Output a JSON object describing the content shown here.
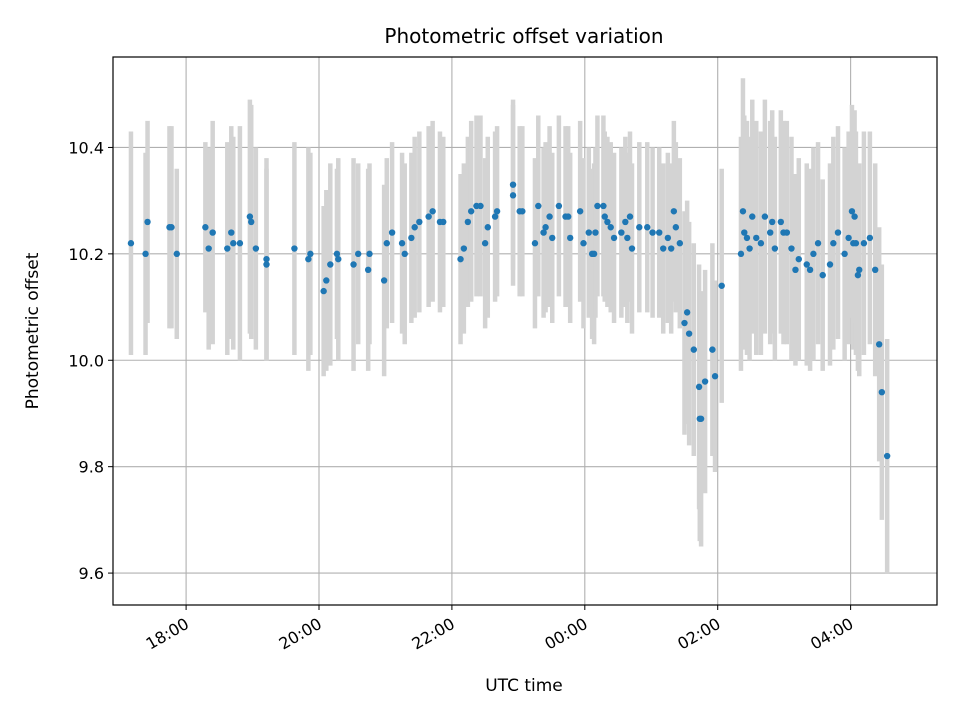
{
  "chart_data": {
    "type": "scatter",
    "title": "Photometric offset variation",
    "xlabel": "UTC time",
    "ylabel": "Photometric offset",
    "x_unit": "hours_utc",
    "xlim": [
      16.9,
      29.3
    ],
    "ylim": [
      9.54,
      10.57
    ],
    "grid": true,
    "x_ticks": [
      {
        "value": 18,
        "label": "18:00"
      },
      {
        "value": 20,
        "label": "20:00"
      },
      {
        "value": 22,
        "label": "22:00"
      },
      {
        "value": 24,
        "label": "00:00"
      },
      {
        "value": 26,
        "label": "02:00"
      },
      {
        "value": 28,
        "label": "04:00"
      }
    ],
    "y_ticks": [
      {
        "value": 9.6,
        "label": "9.6"
      },
      {
        "value": 9.8,
        "label": "9.8"
      },
      {
        "value": 10.0,
        "label": "10.0"
      },
      {
        "value": 10.2,
        "label": "10.2"
      },
      {
        "value": 10.4,
        "label": "10.4"
      }
    ],
    "colors": {
      "points": "#1f77b4",
      "errorbars": "#d3d3d3",
      "grid": "#b0b0b0",
      "axis": "#000000"
    },
    "series": [
      {
        "points": [
          [
            17.17,
            10.22,
            0.21
          ],
          [
            17.39,
            10.2,
            0.19
          ],
          [
            17.42,
            10.26,
            0.19
          ],
          [
            17.75,
            10.25,
            0.19
          ],
          [
            17.78,
            10.25,
            0.19
          ],
          [
            17.86,
            10.2,
            0.16
          ],
          [
            18.29,
            10.25,
            0.16
          ],
          [
            18.34,
            10.21,
            0.19
          ],
          [
            18.4,
            10.24,
            0.21
          ],
          [
            18.62,
            10.21,
            0.2
          ],
          [
            18.68,
            10.24,
            0.2
          ],
          [
            18.71,
            10.22,
            0.2
          ],
          [
            18.81,
            10.22,
            0.22
          ],
          [
            18.96,
            10.27,
            0.22
          ],
          [
            18.98,
            10.26,
            0.22
          ],
          [
            19.05,
            10.21,
            0.19
          ],
          [
            19.21,
            10.19,
            0.19
          ],
          [
            19.21,
            10.18,
            0.18
          ],
          [
            19.63,
            10.21,
            0.2
          ],
          [
            19.84,
            10.19,
            0.21
          ],
          [
            19.87,
            10.2,
            0.19
          ],
          [
            20.07,
            10.13,
            0.16
          ],
          [
            20.11,
            10.15,
            0.17
          ],
          [
            20.17,
            10.18,
            0.19
          ],
          [
            20.27,
            10.2,
            0.16
          ],
          [
            20.29,
            10.19,
            0.19
          ],
          [
            20.52,
            10.18,
            0.2
          ],
          [
            20.59,
            10.2,
            0.17
          ],
          [
            20.74,
            10.17,
            0.19
          ],
          [
            20.76,
            10.2,
            0.17
          ],
          [
            20.98,
            10.15,
            0.18
          ],
          [
            21.02,
            10.22,
            0.16
          ],
          [
            21.1,
            10.24,
            0.17
          ],
          [
            21.25,
            10.22,
            0.17
          ],
          [
            21.29,
            10.2,
            0.17
          ],
          [
            21.39,
            10.23,
            0.16
          ],
          [
            21.44,
            10.25,
            0.17
          ],
          [
            21.51,
            10.26,
            0.17
          ],
          [
            21.65,
            10.27,
            0.17
          ],
          [
            21.71,
            10.28,
            0.17
          ],
          [
            21.82,
            10.26,
            0.17
          ],
          [
            21.87,
            10.26,
            0.16
          ],
          [
            22.13,
            10.19,
            0.16
          ],
          [
            22.18,
            10.21,
            0.16
          ],
          [
            22.24,
            10.26,
            0.16
          ],
          [
            22.29,
            10.28,
            0.17
          ],
          [
            22.37,
            10.29,
            0.17
          ],
          [
            22.43,
            10.29,
            0.17
          ],
          [
            22.5,
            10.22,
            0.16
          ],
          [
            22.54,
            10.25,
            0.17
          ],
          [
            22.65,
            10.27,
            0.16
          ],
          [
            22.68,
            10.28,
            0.16
          ],
          [
            22.92,
            10.31,
            0.17
          ],
          [
            22.92,
            10.33,
            0.16
          ],
          [
            23.02,
            10.28,
            0.16
          ],
          [
            23.06,
            10.28,
            0.16
          ],
          [
            23.25,
            10.22,
            0.16
          ],
          [
            23.3,
            10.29,
            0.17
          ],
          [
            23.38,
            10.24,
            0.16
          ],
          [
            23.41,
            10.25,
            0.16
          ],
          [
            23.47,
            10.27,
            0.17
          ],
          [
            23.51,
            10.23,
            0.16
          ],
          [
            23.61,
            10.29,
            0.17
          ],
          [
            23.71,
            10.27,
            0.17
          ],
          [
            23.75,
            10.27,
            0.17
          ],
          [
            23.78,
            10.23,
            0.16
          ],
          [
            23.93,
            10.28,
            0.17
          ],
          [
            23.98,
            10.22,
            0.16
          ],
          [
            24.06,
            10.24,
            0.16
          ],
          [
            24.11,
            10.2,
            0.16
          ],
          [
            24.14,
            10.2,
            0.17
          ],
          [
            24.16,
            10.24,
            0.16
          ],
          [
            24.19,
            10.29,
            0.17
          ],
          [
            24.28,
            10.29,
            0.17
          ],
          [
            24.3,
            10.27,
            0.16
          ],
          [
            24.34,
            10.26,
            0.16
          ],
          [
            24.39,
            10.25,
            0.16
          ],
          [
            24.44,
            10.23,
            0.16
          ],
          [
            24.55,
            10.24,
            0.16
          ],
          [
            24.61,
            10.26,
            0.16
          ],
          [
            24.64,
            10.23,
            0.16
          ],
          [
            24.68,
            10.27,
            0.16
          ],
          [
            24.71,
            10.21,
            0.16
          ],
          [
            24.82,
            10.25,
            0.16
          ],
          [
            24.94,
            10.25,
            0.16
          ],
          [
            25.02,
            10.24,
            0.16
          ],
          [
            25.12,
            10.24,
            0.16
          ],
          [
            25.18,
            10.21,
            0.16
          ],
          [
            25.25,
            10.23,
            0.16
          ],
          [
            25.3,
            10.21,
            0.16
          ],
          [
            25.34,
            10.28,
            0.17
          ],
          [
            25.37,
            10.25,
            0.16
          ],
          [
            25.43,
            10.22,
            0.16
          ],
          [
            25.5,
            10.07,
            0.21
          ],
          [
            25.54,
            10.09,
            0.21
          ],
          [
            25.57,
            10.05,
            0.21
          ],
          [
            25.64,
            10.02,
            0.2
          ],
          [
            25.72,
            9.95,
            0.23
          ],
          [
            25.73,
            9.89,
            0.23
          ],
          [
            25.75,
            9.89,
            0.24
          ],
          [
            25.81,
            9.96,
            0.21
          ],
          [
            25.92,
            10.02,
            0.2
          ],
          [
            25.96,
            9.97,
            0.18
          ],
          [
            26.06,
            10.14,
            0.22
          ],
          [
            26.35,
            10.2,
            0.22
          ],
          [
            26.38,
            10.28,
            0.25
          ],
          [
            26.4,
            10.24,
            0.22
          ],
          [
            26.44,
            10.23,
            0.22
          ],
          [
            26.48,
            10.21,
            0.21
          ],
          [
            26.52,
            10.27,
            0.22
          ],
          [
            26.58,
            10.23,
            0.22
          ],
          [
            26.65,
            10.22,
            0.21
          ],
          [
            26.71,
            10.27,
            0.22
          ],
          [
            26.79,
            10.24,
            0.21
          ],
          [
            26.82,
            10.26,
            0.21
          ],
          [
            26.86,
            10.21,
            0.21
          ],
          [
            26.95,
            10.26,
            0.21
          ],
          [
            26.99,
            10.24,
            0.21
          ],
          [
            27.04,
            10.24,
            0.21
          ],
          [
            27.11,
            10.21,
            0.21
          ],
          [
            27.17,
            10.17,
            0.18
          ],
          [
            27.22,
            10.19,
            0.19
          ],
          [
            27.34,
            10.18,
            0.19
          ],
          [
            27.39,
            10.17,
            0.19
          ],
          [
            27.44,
            10.2,
            0.2
          ],
          [
            27.51,
            10.22,
            0.19
          ],
          [
            27.58,
            10.16,
            0.18
          ],
          [
            27.69,
            10.18,
            0.19
          ],
          [
            27.74,
            10.22,
            0.2
          ],
          [
            27.81,
            10.24,
            0.2
          ],
          [
            27.91,
            10.2,
            0.2
          ],
          [
            27.97,
            10.23,
            0.2
          ],
          [
            28.04,
            10.22,
            0.2
          ],
          [
            28.08,
            10.22,
            0.21
          ],
          [
            28.13,
            10.17,
            0.2
          ],
          [
            28.2,
            10.22,
            0.21
          ],
          [
            28.29,
            10.23,
            0.2
          ],
          [
            28.37,
            10.17,
            0.2
          ],
          [
            28.43,
            10.03,
            0.22
          ],
          [
            28.47,
            9.94,
            0.24
          ],
          [
            28.55,
            9.82,
            0.22
          ],
          [
            28.02,
            10.28,
            0.2
          ],
          [
            28.06,
            10.27,
            0.2
          ],
          [
            28.11,
            10.16,
            0.18
          ]
        ]
      }
    ]
  }
}
